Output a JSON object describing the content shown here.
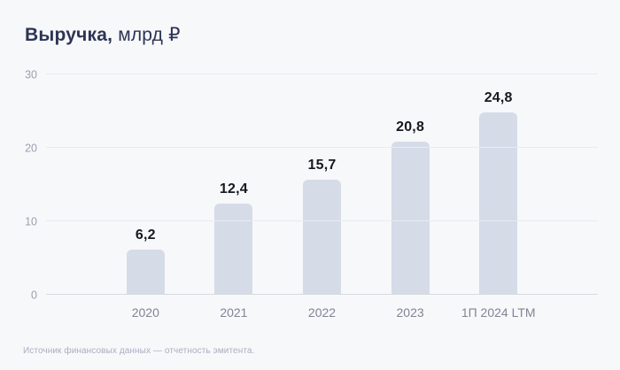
{
  "title": {
    "main": "Выручка,",
    "unit": " млрд ₽"
  },
  "footer": {
    "source": "Источник финансовых данных — отчетность эмитента."
  },
  "colors": {
    "background": "#f7f8fa",
    "bar": "#d6dbe8",
    "title_text": "#2d3554",
    "value_label_text": "#17191e",
    "x_axis_text": "#7f8594",
    "y_axis_text": "#9aa0ae",
    "gridline": "#e9ebef",
    "baseline": "#d8dade",
    "footer_text": "#a9aebf"
  },
  "chart_data": {
    "type": "bar",
    "title": "Выручка, млрд ₽",
    "categories": [
      "2020",
      "2021",
      "2022",
      "2023",
      "1П 2024 LTM"
    ],
    "values": [
      6.2,
      12.4,
      15.7,
      20.8,
      24.8
    ],
    "value_labels": [
      "6,2",
      "12,4",
      "15,7",
      "20,8",
      "24,8"
    ],
    "xlabel": "",
    "ylabel": "",
    "ylim": [
      0,
      30
    ],
    "yticks": [
      0,
      10,
      20,
      30
    ],
    "grid": true,
    "legend_position": "none"
  }
}
